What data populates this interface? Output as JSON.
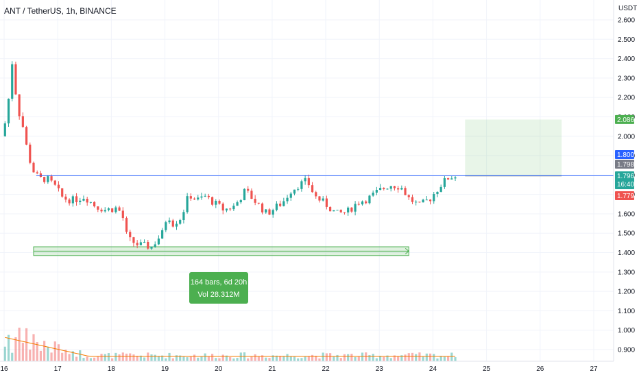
{
  "header": {
    "symbol": "ANT / TetherUS, 1h, BINANCE",
    "quote_unit": "USDT"
  },
  "colors": {
    "up": "#26a69a",
    "down": "#ef5350",
    "resistance_line": "#2962ff",
    "target_zone": "#4caf50",
    "measure_fill": "#4caf50",
    "volume_ma": "#f57c00"
  },
  "chart_data": {
    "type": "candlestick",
    "timeframe": "1h",
    "x_tick_labels": [
      "16",
      "17",
      "18",
      "19",
      "20",
      "21",
      "22",
      "23",
      "24",
      "25",
      "26",
      "27"
    ],
    "x_tick_days": [
      16,
      17,
      18,
      19,
      20,
      21,
      22,
      23,
      24,
      25,
      26,
      27
    ],
    "ylim": [
      0.86,
      2.64
    ],
    "y_tick_labels": [
      "2.600",
      "2.500",
      "2.400",
      "2.300",
      "2.200",
      "2.100",
      "2.000",
      "1.900",
      "1.800",
      "1.700",
      "1.600",
      "1.500",
      "1.400",
      "1.300",
      "1.200",
      "1.100",
      "1.000",
      "0.900"
    ],
    "y_tick_values": [
      2.6,
      2.5,
      2.4,
      2.3,
      2.2,
      2.1,
      2.0,
      1.9,
      1.8,
      1.7,
      1.6,
      1.5,
      1.4,
      1.3,
      1.2,
      1.1,
      1.0,
      0.9
    ],
    "price_path": [
      [
        15.95,
        2.0
      ],
      [
        16.05,
        2.1
      ],
      [
        16.15,
        2.38
      ],
      [
        16.25,
        2.15
      ],
      [
        16.35,
        2.05
      ],
      [
        16.45,
        1.9
      ],
      [
        16.55,
        1.82
      ],
      [
        16.65,
        1.78
      ],
      [
        16.8,
        1.78
      ],
      [
        16.95,
        1.74
      ],
      [
        17.1,
        1.68
      ],
      [
        17.3,
        1.67
      ],
      [
        17.5,
        1.69
      ],
      [
        17.7,
        1.64
      ],
      [
        17.9,
        1.62
      ],
      [
        18.1,
        1.63
      ],
      [
        18.2,
        1.6
      ],
      [
        18.3,
        1.47
      ],
      [
        18.5,
        1.44
      ],
      [
        18.75,
        1.43
      ],
      [
        18.95,
        1.5
      ],
      [
        19.05,
        1.6
      ],
      [
        19.15,
        1.55
      ],
      [
        19.3,
        1.58
      ],
      [
        19.45,
        1.7
      ],
      [
        19.6,
        1.67
      ],
      [
        19.75,
        1.69
      ],
      [
        19.9,
        1.66
      ],
      [
        20.1,
        1.62
      ],
      [
        20.3,
        1.64
      ],
      [
        20.5,
        1.72
      ],
      [
        20.7,
        1.66
      ],
      [
        20.9,
        1.6
      ],
      [
        21.05,
        1.63
      ],
      [
        21.2,
        1.66
      ],
      [
        21.35,
        1.72
      ],
      [
        21.5,
        1.75
      ],
      [
        21.65,
        1.77
      ],
      [
        21.8,
        1.69
      ],
      [
        22.0,
        1.65
      ],
      [
        22.2,
        1.6
      ],
      [
        22.4,
        1.61
      ],
      [
        22.6,
        1.66
      ],
      [
        22.8,
        1.68
      ],
      [
        23.0,
        1.72
      ],
      [
        23.2,
        1.75
      ],
      [
        23.4,
        1.74
      ],
      [
        23.55,
        1.68
      ],
      [
        23.75,
        1.64
      ],
      [
        23.95,
        1.68
      ],
      [
        24.15,
        1.75
      ],
      [
        24.3,
        1.79
      ],
      [
        24.45,
        1.795
      ]
    ],
    "resistance_level": 1.796,
    "resistance_start_day": 16.6,
    "target_zone": {
      "from_day": 24.6,
      "to_day": 26.4,
      "low": 1.796,
      "high": 2.086
    },
    "measure_range": {
      "from_day": 16.55,
      "to_day": 23.55,
      "low": 1.385,
      "high": 1.43,
      "label_bars": "164 bars, 6d 20h",
      "label_vol": "Vol 28.312M"
    },
    "price_labels": [
      {
        "text": "2.086",
        "value": 2.086,
        "color": "#4caf50"
      },
      {
        "text": "1.800",
        "value": 1.8,
        "color": "#2962ff"
      },
      {
        "text": "1.798",
        "value": 1.798,
        "color": "#787b86"
      },
      {
        "text": "1.796",
        "value": 1.796,
        "color": "#26a69a",
        "sub": "16:40"
      },
      {
        "text": "1.779",
        "value": 1.779,
        "color": "#ef5350"
      }
    ]
  }
}
